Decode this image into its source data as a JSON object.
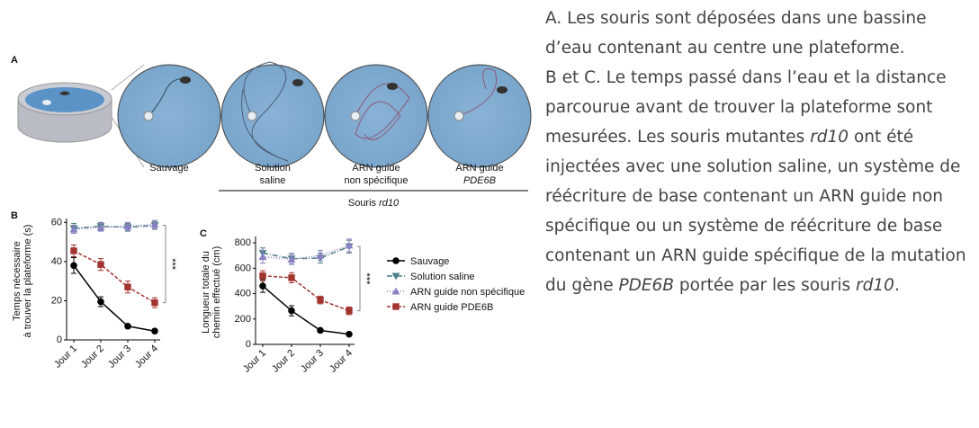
{
  "figure": {
    "panel_a": {
      "label": "A",
      "groups": [
        [
          "Sauvage"
        ],
        [
          "Solution",
          "saline"
        ],
        [
          "ARN guide",
          "non spécifique"
        ],
        [
          "ARN guide",
          "PDE6B"
        ]
      ],
      "bracket_label": [
        "Souris ",
        "rd10"
      ]
    }
  },
  "chart_data": [
    {
      "type": "line",
      "panel": "B",
      "y_label": [
        "Temps nécessaire",
        "à trouver la plateforme (s)"
      ],
      "categories": [
        "Jour 1",
        "Jour 2",
        "Jour 3",
        "Jour 4"
      ],
      "ylim": [
        0,
        62
      ],
      "yticks": [
        0,
        20,
        40,
        60
      ],
      "annotation": "***",
      "series": [
        {
          "name": "Sauvage",
          "color": "#000000",
          "marker": "circle",
          "dash": "",
          "values": [
            38,
            19.5,
            7,
            4.5
          ],
          "errors": [
            4,
            2.5,
            1,
            1
          ]
        },
        {
          "name": "Solution saline",
          "color": "#4f7f86",
          "marker": "tri-down",
          "dash": "6 2 1 2",
          "values": [
            57,
            58,
            57.5,
            58.5
          ],
          "errors": [
            2.5,
            2,
            2,
            2
          ]
        },
        {
          "name": "ARN guide non spécifique",
          "color": "#8a80c4",
          "marker": "tri-up",
          "dash": "1 2",
          "values": [
            56.5,
            57.5,
            58,
            59
          ],
          "errors": [
            2,
            2,
            2,
            2
          ]
        },
        {
          "name": "ARN guide PDE6B",
          "color": "#a2342f",
          "marker": "square",
          "dash": "4 2",
          "values": [
            45.5,
            38.5,
            27,
            19
          ],
          "errors": [
            3,
            3,
            3,
            2.5
          ]
        }
      ]
    },
    {
      "type": "line",
      "panel": "C",
      "y_label": [
        "Longueur totale du",
        "chemin effectué (cm)"
      ],
      "categories": [
        "Jour 1",
        "Jour 2",
        "Jour 3",
        "Jour 4"
      ],
      "ylim": [
        0,
        850
      ],
      "yticks": [
        0,
        200,
        400,
        600,
        800
      ],
      "annotation": "***",
      "series": [
        {
          "name": "Sauvage",
          "color": "#000000",
          "marker": "circle",
          "dash": "",
          "values": [
            460,
            265,
            110,
            80
          ],
          "errors": [
            50,
            40,
            10,
            10
          ]
        },
        {
          "name": "Solution saline",
          "color": "#4f7f86",
          "marker": "tri-down",
          "dash": "6 2 1 2",
          "values": [
            720,
            675,
            680,
            770
          ],
          "errors": [
            40,
            40,
            40,
            50
          ]
        },
        {
          "name": "ARN guide non spécifique",
          "color": "#8a80c4",
          "marker": "tri-up",
          "dash": "1 2",
          "values": [
            690,
            670,
            700,
            780
          ],
          "errors": [
            50,
            40,
            40,
            50
          ]
        },
        {
          "name": "ARN guide PDE6B",
          "color": "#a2342f",
          "marker": "square",
          "dash": "4 2",
          "values": [
            540,
            525,
            350,
            265
          ],
          "errors": [
            40,
            40,
            30,
            30
          ]
        }
      ]
    }
  ],
  "caption": {
    "paragraphs": [
      [
        "A. Les souris sont déposées dans une bassine d’eau contenant au centre une plateforme."
      ],
      [
        "B et C. Le temps passé dans l’eau et la distance parcourue avant de trouver la plateforme sont mesurées. Les souris mutantes ",
        "rd10",
        " ont été injectées avec une solution saline, un système de réécriture de base contenant un ARN guide non spécifique ou un système de réécriture de base contenant un ARN guide spécifique de la mutation du gène ",
        "PDE6B",
        " portée par les souris ",
        "rd10",
        "."
      ]
    ]
  }
}
